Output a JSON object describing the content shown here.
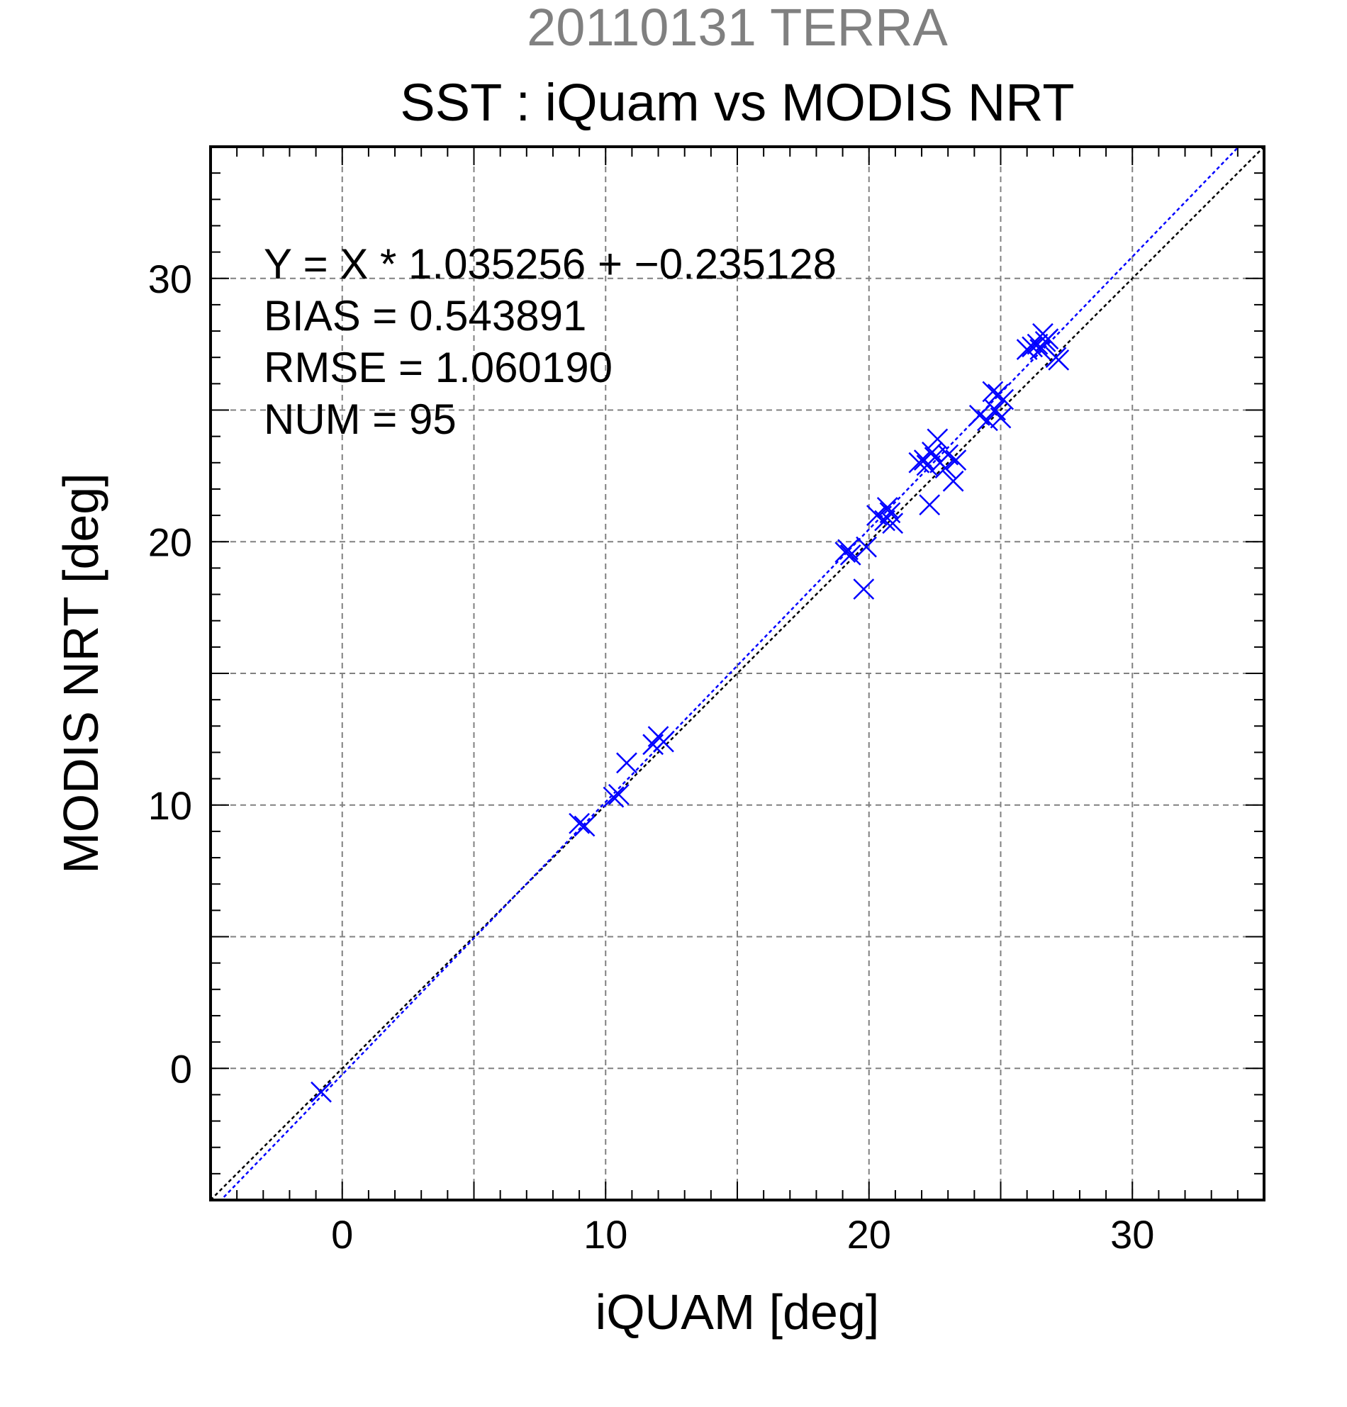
{
  "chart_data": {
    "type": "scatter",
    "subtitle": "20110131 TERRA",
    "title": "SST : iQuam vs MODIS NRT",
    "xlabel": "iQUAM [deg]",
    "ylabel": "MODIS NRT [deg]",
    "xlim": [
      -5,
      35
    ],
    "ylim": [
      -5,
      35
    ],
    "x_ticks": [
      0,
      10,
      20,
      30
    ],
    "y_ticks": [
      0,
      10,
      20,
      30
    ],
    "grid": true,
    "stats": [
      "Y = X * 1.035256 + −0.235128",
      "BIAS = 0.543891",
      "RMSE = 1.060190",
      "NUM = 95"
    ],
    "fit_line": {
      "slope": 1.035256,
      "intercept": -0.235128,
      "color": "#0000ff"
    },
    "reference_line": {
      "slope": 1,
      "intercept": 0,
      "color": "#000000"
    },
    "marker": {
      "shape": "x",
      "color": "#0000ff"
    },
    "points": [
      [
        -0.8,
        -0.9
      ],
      [
        9.0,
        9.3
      ],
      [
        9.2,
        9.2
      ],
      [
        10.3,
        10.3
      ],
      [
        10.5,
        10.4
      ],
      [
        10.8,
        11.6
      ],
      [
        11.8,
        12.3
      ],
      [
        12.0,
        12.6
      ],
      [
        12.2,
        12.4
      ],
      [
        19.1,
        19.6
      ],
      [
        19.2,
        19.7
      ],
      [
        19.3,
        19.5
      ],
      [
        19.8,
        18.2
      ],
      [
        19.9,
        19.8
      ],
      [
        20.3,
        21.0
      ],
      [
        20.6,
        20.8
      ],
      [
        20.7,
        21.3
      ],
      [
        20.8,
        21.1
      ],
      [
        20.9,
        20.7
      ],
      [
        21.9,
        23.0
      ],
      [
        22.1,
        23.1
      ],
      [
        22.2,
        22.9
      ],
      [
        22.3,
        21.4
      ],
      [
        22.4,
        23.4
      ],
      [
        22.5,
        23.2
      ],
      [
        22.6,
        23.9
      ],
      [
        22.7,
        23.0
      ],
      [
        22.9,
        22.8
      ],
      [
        23.0,
        23.3
      ],
      [
        23.2,
        22.3
      ],
      [
        23.3,
        23.1
      ],
      [
        24.2,
        24.8
      ],
      [
        24.5,
        24.6
      ],
      [
        24.8,
        25.0
      ],
      [
        24.9,
        25.6
      ],
      [
        25.0,
        24.7
      ],
      [
        25.1,
        25.4
      ],
      [
        24.7,
        25.7
      ],
      [
        26.0,
        27.3
      ],
      [
        26.2,
        27.4
      ],
      [
        26.4,
        27.5
      ],
      [
        26.5,
        27.3
      ],
      [
        26.6,
        27.9
      ],
      [
        26.7,
        27.6
      ],
      [
        26.8,
        27.7
      ],
      [
        27.1,
        27.0
      ],
      [
        27.2,
        26.9
      ]
    ]
  }
}
